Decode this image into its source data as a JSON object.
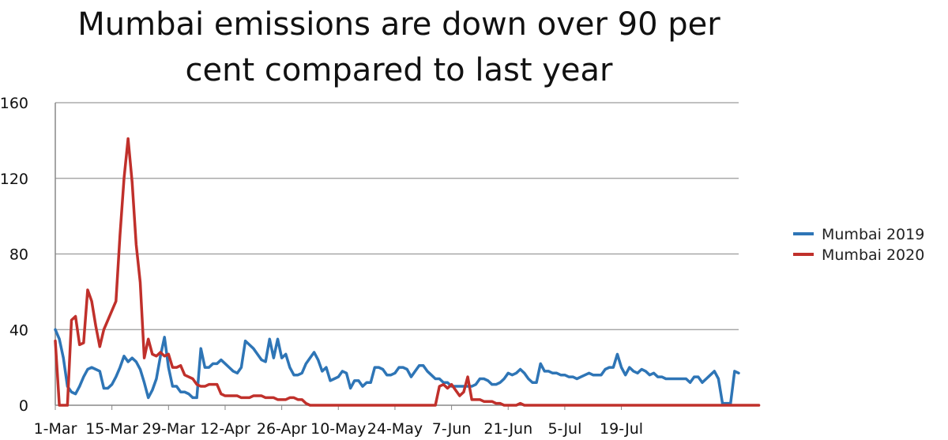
{
  "title_lines": [
    "Mumbai emissions are down over 90 per",
    "cent compared to last year"
  ],
  "chart_data": {
    "type": "line",
    "title": "Mumbai emissions are down over 90 per cent compared to last year",
    "xlabel": "",
    "ylabel": "",
    "x_start": "1-Mar",
    "x_end": "27-Jul",
    "x_ticks": [
      "1-Mar",
      "15-Mar",
      "29-Mar",
      "12-Apr",
      "26-Apr",
      "10-May",
      "24-May",
      "7-Jun",
      "21-Jun",
      "5-Jul",
      "19-Jul"
    ],
    "y_ticks": [
      0,
      40,
      80,
      120,
      160
    ],
    "ylim": [
      0,
      160
    ],
    "grid": "horizontal",
    "legend_position": "right",
    "series": [
      {
        "name": "Mumbai 2019",
        "color": "#2e75b6",
        "values": [
          40,
          35,
          25,
          10,
          7,
          6,
          10,
          15,
          19,
          20,
          19,
          18,
          9,
          9,
          11,
          15,
          20,
          26,
          23,
          25,
          23,
          19,
          12,
          4,
          8,
          14,
          26,
          36,
          20,
          10,
          10,
          7,
          7,
          6,
          4,
          4,
          30,
          20,
          20,
          22,
          22,
          24,
          22,
          20,
          18,
          17,
          20,
          34,
          32,
          30,
          27,
          24,
          23,
          35,
          25,
          35,
          25,
          27,
          20,
          16,
          16,
          17,
          22,
          25,
          28,
          24,
          18,
          20,
          13,
          14,
          15,
          18,
          17,
          9,
          13,
          13,
          10,
          12,
          12,
          20,
          20,
          19,
          16,
          16,
          17,
          20,
          20,
          19,
          15,
          18,
          21,
          21,
          18,
          16,
          14,
          14,
          12,
          12,
          10,
          10,
          10,
          10,
          10,
          10,
          11,
          14,
          14,
          13,
          11,
          11,
          12,
          14,
          17,
          16,
          17,
          19,
          17,
          14,
          12,
          12,
          22,
          18,
          18,
          17,
          17,
          16,
          16,
          15,
          15,
          14,
          15,
          16,
          17,
          16,
          16,
          16,
          19,
          20,
          20,
          27,
          20,
          16,
          20,
          18,
          17,
          19,
          18,
          16,
          17,
          15,
          15,
          14,
          14,
          14,
          14,
          14,
          14,
          12,
          15,
          15,
          12,
          14,
          16,
          18,
          14,
          1,
          1,
          1,
          18,
          17
        ]
      },
      {
        "name": "Mumbai 2020",
        "color": "#c0302b",
        "values": [
          34,
          0,
          0,
          0,
          45,
          47,
          32,
          33,
          61,
          55,
          42,
          31,
          40,
          45,
          50,
          55,
          90,
          120,
          141,
          118,
          85,
          65,
          25,
          35,
          27,
          26,
          28,
          26,
          27,
          20,
          20,
          21,
          16,
          15,
          14,
          11,
          10,
          10,
          11,
          11,
          11,
          6,
          5,
          5,
          5,
          5,
          4,
          4,
          4,
          5,
          5,
          5,
          4,
          4,
          4,
          3,
          3,
          3,
          4,
          4,
          3,
          3,
          1,
          0,
          0,
          0,
          0,
          0,
          0,
          0,
          0,
          0,
          0,
          0,
          0,
          0,
          0,
          0,
          0,
          0,
          0,
          0,
          0,
          0,
          0,
          0,
          0,
          0,
          0,
          0,
          0,
          0,
          0,
          0,
          0,
          10,
          11,
          9,
          11,
          8,
          5,
          7,
          15,
          3,
          3,
          3,
          2,
          2,
          2,
          1,
          1,
          0,
          0,
          0,
          0,
          1,
          0,
          0,
          0,
          0,
          0,
          0,
          0,
          0,
          0,
          0,
          0,
          0,
          0,
          0,
          0,
          0,
          0,
          0,
          0,
          0,
          0,
          0,
          0,
          0,
          0,
          0,
          0,
          0,
          0,
          0,
          0,
          0,
          0,
          0,
          0,
          0,
          0,
          0,
          0,
          0,
          0,
          0,
          0,
          0,
          0,
          0,
          0,
          0,
          0,
          0,
          0,
          0,
          0,
          0,
          0,
          0,
          0,
          0,
          0
        ]
      }
    ]
  }
}
